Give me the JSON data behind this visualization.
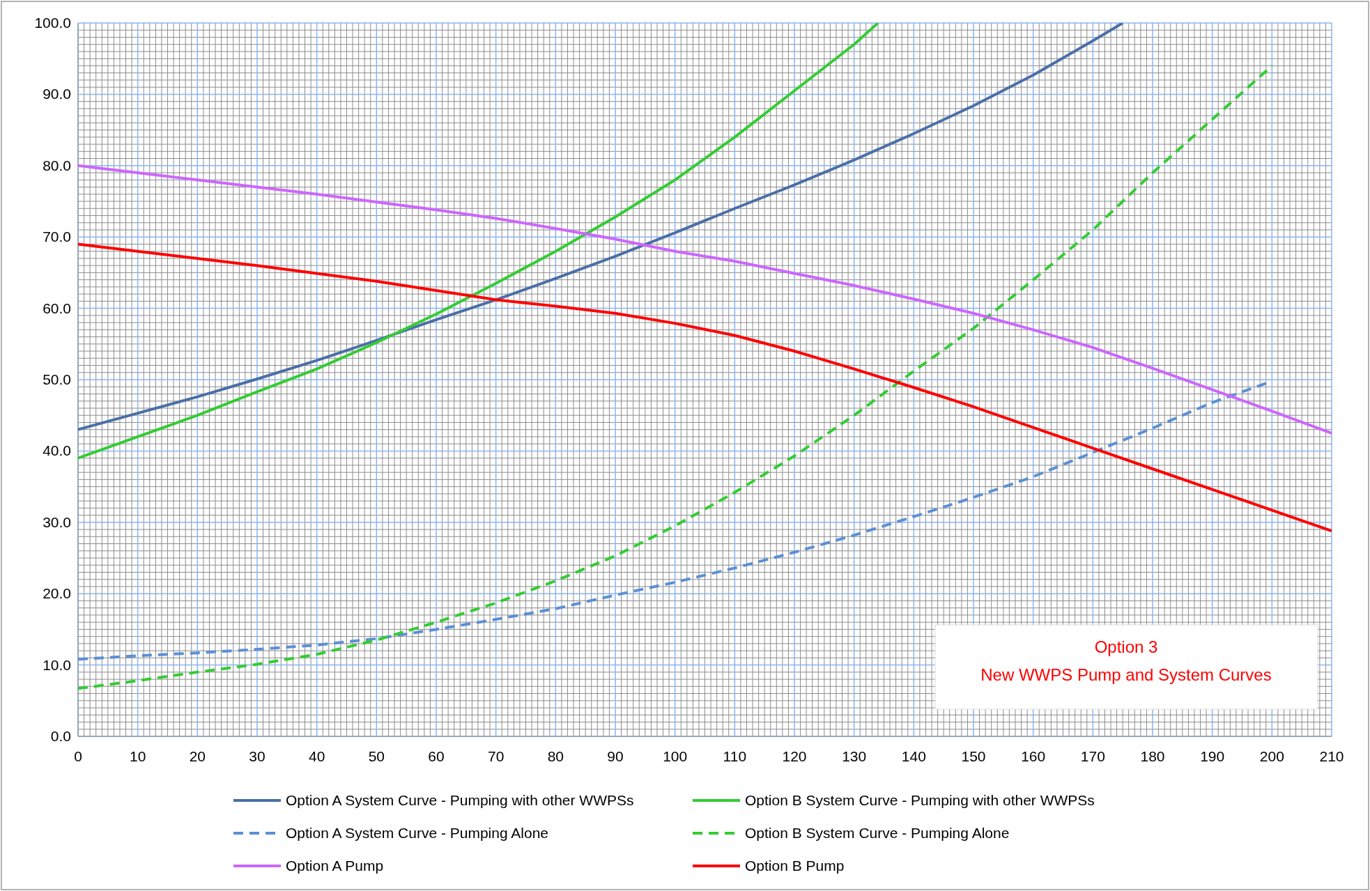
{
  "chart_data": {
    "type": "line",
    "xlim": [
      0,
      210
    ],
    "ylim": [
      0,
      100
    ],
    "xticks": [
      0,
      10,
      20,
      30,
      40,
      50,
      60,
      70,
      80,
      90,
      100,
      110,
      120,
      130,
      140,
      150,
      160,
      170,
      180,
      190,
      200,
      210
    ],
    "yticks": [
      {
        "value": 0,
        "label": "0.0"
      },
      {
        "value": 10,
        "label": "10.0"
      },
      {
        "value": 20,
        "label": "20.0"
      },
      {
        "value": 30,
        "label": "30.0"
      },
      {
        "value": 40,
        "label": "40.0"
      },
      {
        "value": 50,
        "label": "50.0"
      },
      {
        "value": 60,
        "label": "60.0"
      },
      {
        "value": 70,
        "label": "70.0"
      },
      {
        "value": 80,
        "label": "80.0"
      },
      {
        "value": 90,
        "label": "90.0"
      },
      {
        "value": 100,
        "label": "100.0"
      }
    ],
    "grid": true,
    "legend": "bottom",
    "annotations": [
      "Option 3",
      "New WWPS Pump and System Curves"
    ],
    "series": [
      {
        "name": "Option A System Curve - Pumping with other WWPSs",
        "color": "#4a6fa8",
        "line_style": "solid",
        "x": [
          0,
          10,
          20,
          30,
          40,
          50,
          60,
          70,
          80,
          90,
          100,
          110,
          120,
          130,
          140,
          150,
          160,
          170,
          175
        ],
        "values": [
          43,
          45.3,
          47.6,
          50.1,
          52.7,
          55.5,
          58.4,
          61.2,
          64.2,
          67.3,
          70.6,
          74,
          77.3,
          80.8,
          84.5,
          88.4,
          92.7,
          97.5,
          100
        ]
      },
      {
        "name": "Option B System Curve - Pumping with other WWPSs",
        "color": "#33cc33",
        "line_style": "solid",
        "x": [
          0,
          10,
          20,
          30,
          40,
          50,
          60,
          70,
          80,
          90,
          100,
          110,
          120,
          130,
          134
        ],
        "values": [
          39,
          42,
          45,
          48.3,
          51.5,
          55.2,
          59.2,
          63.5,
          68,
          72.8,
          78,
          84,
          90.5,
          97,
          100
        ]
      },
      {
        "name": "Option A System Curve - Pumping Alone",
        "color": "#5b8fd6",
        "line_style": "dashed",
        "x": [
          0,
          10,
          20,
          30,
          40,
          50,
          60,
          70,
          80,
          90,
          100,
          110,
          120,
          130,
          140,
          150,
          160,
          170,
          180,
          190,
          200
        ],
        "values": [
          10.8,
          11.3,
          11.7,
          12.2,
          12.8,
          13.7,
          15,
          16.4,
          17.9,
          19.8,
          21.6,
          23.6,
          25.8,
          28.2,
          30.8,
          33.5,
          36.4,
          39.8,
          43.2,
          46.8,
          49.8
        ]
      },
      {
        "name": "Option B System Curve - Pumping Alone",
        "color": "#33cc33",
        "line_style": "dashed",
        "x": [
          0,
          10,
          20,
          30,
          40,
          50,
          60,
          70,
          80,
          90,
          100,
          110,
          120,
          130,
          140,
          150,
          160,
          170,
          180,
          190,
          200
        ],
        "values": [
          6.7,
          7.8,
          9,
          10.1,
          11.5,
          13.5,
          16,
          18.7,
          21.8,
          25.3,
          29.5,
          34.2,
          39.3,
          45,
          51.2,
          57.2,
          64,
          71,
          79,
          86.5,
          94
        ]
      },
      {
        "name": "Option A Pump",
        "color": "#cc66ff",
        "line_style": "solid",
        "x": [
          0,
          10,
          20,
          30,
          40,
          50,
          60,
          70,
          80,
          90,
          100,
          110,
          120,
          130,
          140,
          150,
          160,
          170,
          180,
          190,
          200,
          210
        ],
        "values": [
          80,
          79,
          78,
          77,
          76,
          74.9,
          73.8,
          72.6,
          71.2,
          69.7,
          68,
          66.6,
          64.9,
          63.2,
          61.3,
          59.3,
          57,
          54.5,
          51.6,
          48.6,
          45.6,
          42.5
        ]
      },
      {
        "name": "Option B Pump",
        "color": "#ff0000",
        "line_style": "solid",
        "x": [
          0,
          10,
          20,
          30,
          40,
          50,
          60,
          70,
          80,
          90,
          100,
          110,
          120,
          130,
          140,
          150,
          160,
          170,
          180,
          190,
          200,
          210
        ],
        "values": [
          69,
          68,
          67,
          66,
          64.9,
          63.8,
          62.5,
          61.2,
          60.3,
          59.3,
          57.9,
          56.2,
          54,
          51.5,
          48.9,
          46.2,
          43.3,
          40.4,
          37.5,
          34.6,
          31.7,
          28.8
        ]
      }
    ]
  }
}
